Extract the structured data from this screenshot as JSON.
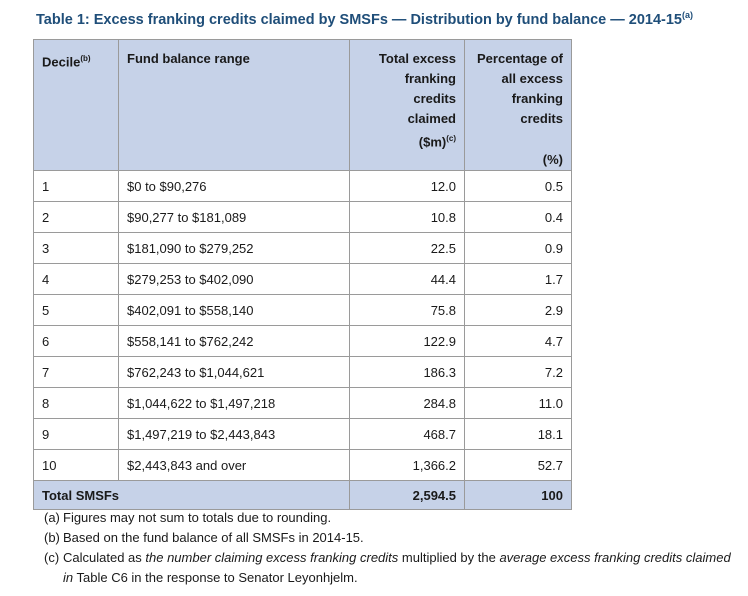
{
  "title": {
    "text": "Table 1: Excess franking credits claimed by SMSFs — Distribution by fund balance — 2014-15",
    "footnote_ref": "(a)"
  },
  "table": {
    "headers": {
      "decile": "Decile",
      "decile_ref": "(b)",
      "range": "Fund balance range",
      "total_line1": "Total excess",
      "total_line2": "franking",
      "total_line3": "credits",
      "total_line4": "claimed",
      "total_line5": "($m)",
      "total_ref": "(c)",
      "pct_line1": "Percentage of",
      "pct_line2": "all excess",
      "pct_line3": "franking",
      "pct_line4": "credits",
      "pct_line5": "(%)"
    },
    "rows": [
      {
        "decile": "1",
        "range": "$0 to $90,276",
        "total": "12.0",
        "pct": "0.5"
      },
      {
        "decile": "2",
        "range": "$90,277 to $181,089",
        "total": "10.8",
        "pct": "0.4"
      },
      {
        "decile": "3",
        "range": "$181,090 to $279,252",
        "total": "22.5",
        "pct": "0.9"
      },
      {
        "decile": "4",
        "range": "$279,253 to $402,090",
        "total": "44.4",
        "pct": "1.7"
      },
      {
        "decile": "5",
        "range": "$402,091 to $558,140",
        "total": "75.8",
        "pct": "2.9"
      },
      {
        "decile": "6",
        "range": "$558,141 to $762,242",
        "total": "122.9",
        "pct": "4.7"
      },
      {
        "decile": "7",
        "range": "$762,243 to $1,044,621",
        "total": "186.3",
        "pct": "7.2"
      },
      {
        "decile": "8",
        "range": "$1,044,622 to $1,497,218",
        "total": "284.8",
        "pct": "11.0"
      },
      {
        "decile": "9",
        "range": "$1,497,219 to $2,443,843",
        "total": "468.7",
        "pct": "18.1"
      },
      {
        "decile": "10",
        "range": "$2,443,843 and over",
        "total": "1,366.2",
        "pct": "52.7"
      }
    ],
    "total": {
      "label": "Total SMSFs",
      "total": "2,594.5",
      "pct": "100"
    }
  },
  "notes": {
    "a_label": "(a)",
    "a_text": "Figures may not sum to totals due to rounding.",
    "b_label": "(b)",
    "b_text": "Based on the fund balance of all SMSFs in 2014-15.",
    "c_label": "(c)",
    "c_part1": "Calculated as ",
    "c_italic1": "the number claiming excess franking credits",
    "c_part2": " multiplied by the ",
    "c_italic2": "average excess franking credits claimed in",
    "c_part3": " Table C6 in the response to Senator Leyonhjelm."
  }
}
